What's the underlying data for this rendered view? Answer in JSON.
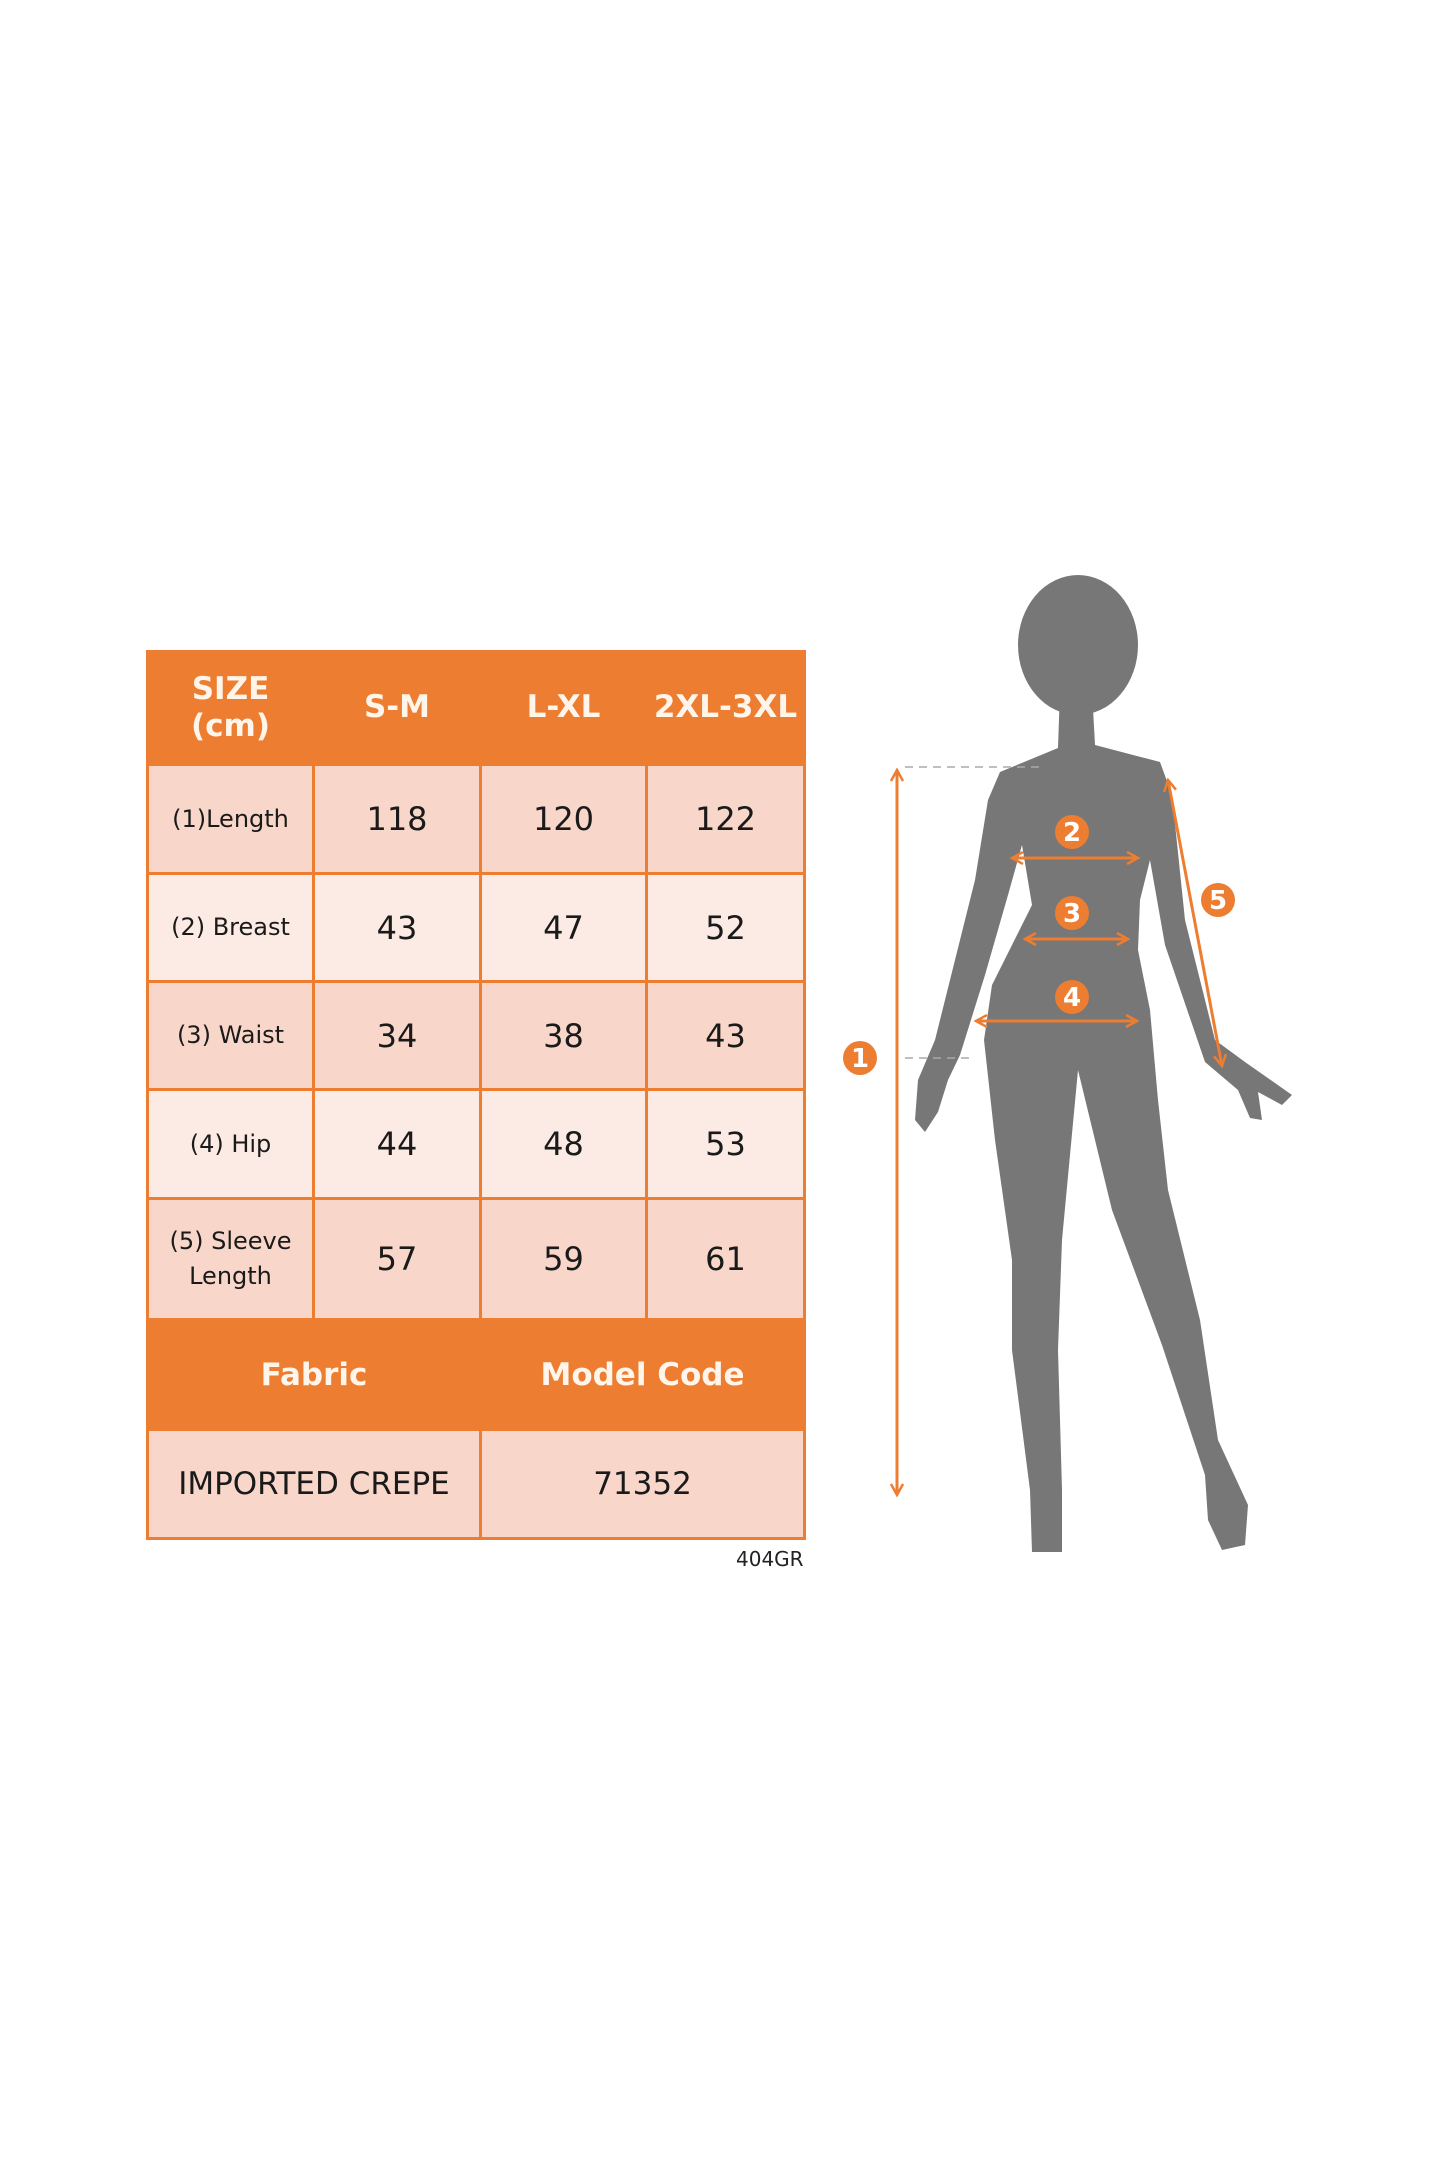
{
  "table": {
    "header": [
      "SIZE\n(cm)",
      "S-M",
      "L-XL",
      "2XL-3XL"
    ],
    "header_label_line1": "SIZE",
    "header_label_line2": "(cm)",
    "rows": [
      {
        "label": "(1)Length",
        "values": [
          "118",
          "120",
          "122"
        ]
      },
      {
        "label": "(2) Breast",
        "values": [
          "43",
          "47",
          "52"
        ]
      },
      {
        "label": "(3) Waist",
        "values": [
          "34",
          "38",
          "43"
        ]
      },
      {
        "label": "(4) Hip",
        "values": [
          "44",
          "48",
          "53"
        ]
      },
      {
        "label_line1": "(5) Sleeve",
        "label_line2": "Length",
        "values": [
          "57",
          "59",
          "61"
        ]
      }
    ],
    "footer_headers": [
      "Fabric",
      "Model Code"
    ],
    "footer_values": [
      "IMPORTED CREPE",
      "71352"
    ]
  },
  "code_label": "404GR",
  "figure": {
    "markers": [
      "1",
      "2",
      "3",
      "4",
      "5"
    ],
    "accent_color": "#ed7d31",
    "silhouette_color": "#777777"
  }
}
